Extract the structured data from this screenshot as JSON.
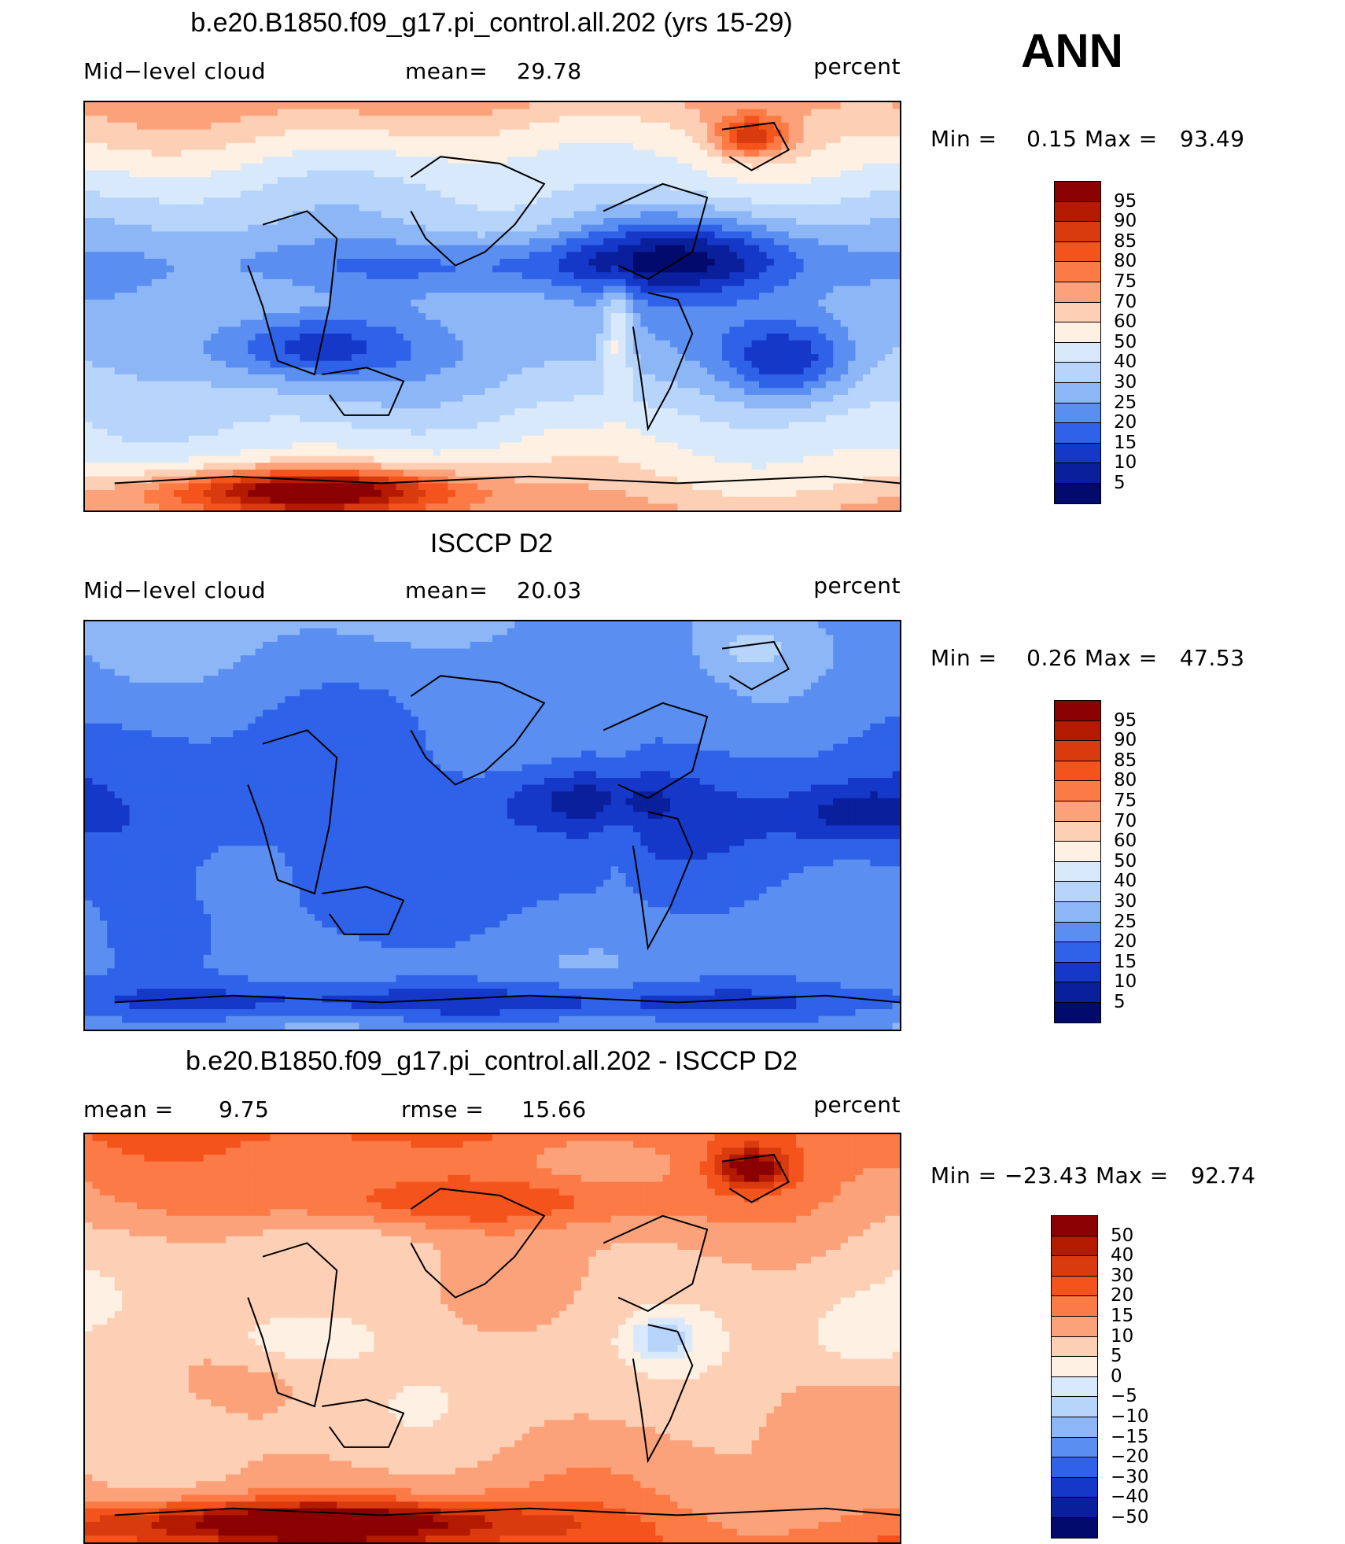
{
  "season": "ANN",
  "chart_data": [
    {
      "type": "heatmap",
      "title": "b.e20.B1850.f09_g17.pi_control.all.202 (yrs 15-29)",
      "variable": "Mid−level cloud",
      "stat_left": "",
      "stat_label": "mean=",
      "stat_value": "29.78",
      "units": "percent",
      "min_label": "Min  =",
      "min_value": "0.15",
      "max_label": "Max  =",
      "max_value": "93.49",
      "colorbar": {
        "labels": [
          "95",
          "90",
          "85",
          "80",
          "75",
          "70",
          "60",
          "50",
          "40",
          "30",
          "25",
          "20",
          "15",
          "10",
          "5"
        ],
        "colors": [
          "#8b0000",
          "#b31a00",
          "#d93a0e",
          "#f4541c",
          "#fb7a45",
          "#fca27b",
          "#fdd0b6",
          "#fef0e2",
          "#d9e9fc",
          "#b7d4fb",
          "#8db6f7",
          "#5a8ef1",
          "#2f62e8",
          "#1538c9",
          "#0a1f9c",
          "#030a6e"
        ],
        "range": [
          0,
          100
        ]
      },
      "field_mean": 29.78
    },
    {
      "type": "heatmap",
      "title": "ISCCP D2",
      "variable": "Mid−level cloud",
      "stat_left": "",
      "stat_label": "mean=",
      "stat_value": "20.03",
      "units": "percent",
      "min_label": "Min  =",
      "min_value": "0.26",
      "max_label": "Max  =",
      "max_value": "47.53",
      "colorbar": {
        "labels": [
          "95",
          "90",
          "85",
          "80",
          "75",
          "70",
          "60",
          "50",
          "40",
          "30",
          "25",
          "20",
          "15",
          "10",
          "5"
        ],
        "colors": [
          "#8b0000",
          "#b31a00",
          "#d93a0e",
          "#f4541c",
          "#fb7a45",
          "#fca27b",
          "#fdd0b6",
          "#fef0e2",
          "#d9e9fc",
          "#b7d4fb",
          "#8db6f7",
          "#5a8ef1",
          "#2f62e8",
          "#1538c9",
          "#0a1f9c",
          "#030a6e"
        ],
        "range": [
          0,
          100
        ]
      },
      "field_mean": 20.03
    },
    {
      "type": "heatmap",
      "title": "b.e20.B1850.f09_g17.pi_control.all.202 - ISCCP D2",
      "stat_left_label": "mean  =",
      "stat_left_value": "9.75",
      "stat_label": "rmse  =",
      "stat_value": "15.66",
      "units": "percent",
      "min_label": "Min  =",
      "min_value": "−23.43",
      "max_label": "Max  =",
      "max_value": "92.74",
      "colorbar": {
        "labels": [
          "50",
          "40",
          "30",
          "20",
          "15",
          "10",
          "5",
          "0",
          "−5",
          "−10",
          "−15",
          "−20",
          "−30",
          "−40",
          "−50"
        ],
        "colors": [
          "#8b0000",
          "#b31a00",
          "#d93a0e",
          "#f4541c",
          "#fb7a45",
          "#fca27b",
          "#fdd0b6",
          "#fef0e2",
          "#d9e9fc",
          "#b7d4fb",
          "#8db6f7",
          "#5a8ef1",
          "#2f62e8",
          "#1538c9",
          "#0a1f9c",
          "#030a6e"
        ],
        "range": [
          -60,
          60
        ]
      },
      "field_mean": 9.75
    }
  ]
}
